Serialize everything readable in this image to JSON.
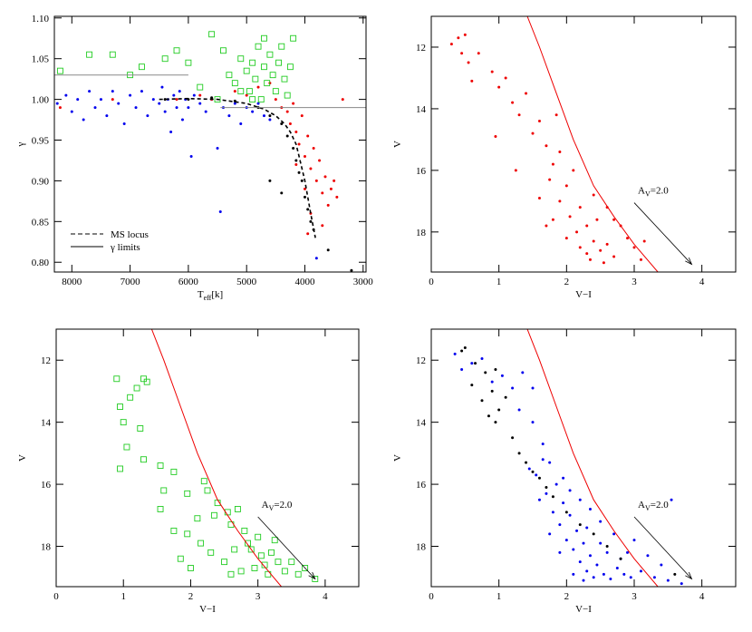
{
  "chart_data": [
    {
      "type": "scatter",
      "xlabel": [
        "T",
        "eff",
        "[k]"
      ],
      "ylabel": "γ",
      "xlim": [
        8300,
        2950
      ],
      "ylim": [
        0.788,
        1.102
      ],
      "xticks": [
        8000,
        7000,
        6000,
        5000,
        4000,
        3000
      ],
      "yticks": [
        {
          "value": 0.8,
          "label": "0.80"
        },
        {
          "value": 0.85,
          "label": "0.85"
        },
        {
          "value": 0.9,
          "label": "0.90"
        },
        {
          "value": 0.95,
          "label": "0.95"
        },
        {
          "value": 1.0,
          "label": "1.00"
        },
        {
          "value": 1.05,
          "label": "1.05"
        },
        {
          "value": 1.1,
          "label": "1.10"
        }
      ],
      "legend": "lower left",
      "series": [
        {
          "style": "dot",
          "color": "#0000ee",
          "x": [
            8250,
            8100,
            8000,
            7900,
            7800,
            7700,
            7600,
            7500,
            7400,
            7300,
            7200,
            7100,
            7000,
            6900,
            6800,
            6700,
            6600,
            6500,
            6450,
            6400,
            6350,
            6300,
            6250,
            6200,
            6150,
            6100,
            6050,
            6000,
            5950,
            5900,
            5800,
            5700,
            5600,
            5500,
            5400,
            5300,
            5200,
            5100,
            5000,
            4900,
            4800,
            4700,
            4600,
            5450,
            3800
          ],
          "y": [
            0.995,
            1.005,
            0.985,
            1.0,
            0.975,
            1.01,
            0.99,
            1.0,
            0.98,
            1.01,
            0.995,
            0.97,
            1.005,
            0.99,
            1.01,
            0.98,
            1.0,
            0.995,
            1.015,
            0.985,
            1.0,
            0.96,
            1.005,
            0.99,
            1.01,
            0.975,
            1.0,
            0.99,
            0.93,
            1.005,
            0.995,
            0.985,
            1.0,
            0.94,
            0.99,
            0.98,
            0.995,
            0.97,
            0.99,
            0.985,
            0.995,
            0.98,
            0.975,
            0.862,
            0.805
          ]
        },
        {
          "style": "dot",
          "color": "#ee0000",
          "x": [
            7300,
            6200,
            5800,
            5600,
            5200,
            5000,
            4800,
            4600,
            4500,
            4400,
            4300,
            4250,
            4200,
            4150,
            4100,
            4050,
            4000,
            3950,
            3900,
            3850,
            3800,
            3750,
            3700,
            3650,
            3600,
            3550,
            3500,
            3900,
            4000,
            4150,
            3950,
            3700,
            3450,
            3350,
            8200
          ],
          "y": [
            1.0,
            1.0,
            1.005,
            1.0,
            1.01,
            1.005,
            1.015,
            1.02,
            1.0,
            0.99,
            0.985,
            0.97,
            0.995,
            0.96,
            0.945,
            0.98,
            0.93,
            0.955,
            0.915,
            0.94,
            0.9,
            0.925,
            0.885,
            0.905,
            0.87,
            0.89,
            0.9,
            0.86,
            0.89,
            0.92,
            0.835,
            0.845,
            0.88,
            1.0,
            0.99
          ]
        },
        {
          "style": "dot",
          "color": "#000000",
          "x": [
            6400,
            6000,
            5600,
            5200,
            4800,
            4600,
            4400,
            4300,
            4200,
            4150,
            4100,
            4050,
            4000,
            3950,
            3900,
            3850,
            4400,
            4600,
            3600,
            3200
          ],
          "y": [
            1.0,
            1.0,
            1.002,
            0.998,
            0.99,
            0.98,
            0.97,
            0.955,
            0.94,
            0.925,
            0.91,
            0.9,
            0.88,
            0.865,
            0.85,
            0.84,
            0.885,
            0.9,
            0.815,
            0.79
          ]
        },
        {
          "style": "square",
          "color": "#22cc22",
          "x": [
            8200,
            7700,
            7300,
            6800,
            6400,
            6000,
            5600,
            5400,
            5300,
            5200,
            5100,
            5000,
            4950,
            4900,
            4850,
            4800,
            4750,
            4700,
            4650,
            4600,
            4550,
            4500,
            4450,
            4400,
            4350,
            4300,
            4250,
            4200,
            5800,
            5500,
            6200,
            7000,
            4700,
            4900,
            5100
          ],
          "y": [
            1.035,
            1.055,
            1.055,
            1.04,
            1.05,
            1.045,
            1.08,
            1.06,
            1.03,
            1.02,
            1.05,
            1.035,
            1.01,
            1.045,
            1.025,
            1.065,
            1.0,
            1.04,
            1.02,
            1.055,
            1.03,
            1.01,
            1.045,
            1.065,
            1.025,
            1.005,
            1.04,
            1.075,
            1.015,
            1.0,
            1.06,
            1.03,
            1.075,
            1.0,
            1.01
          ]
        },
        {
          "style": "line",
          "dash": true,
          "color": "#000000",
          "name": "MS locus",
          "x": [
            6500,
            6000,
            5500,
            5000,
            4700,
            4500,
            4350,
            4250,
            4150,
            4100,
            4050,
            4000,
            3950,
            3900,
            3820
          ],
          "y": [
            1.0,
            1.001,
            1.0,
            0.995,
            0.988,
            0.98,
            0.97,
            0.96,
            0.945,
            0.93,
            0.915,
            0.9,
            0.88,
            0.86,
            0.83
          ]
        },
        {
          "style": "line",
          "dash": false,
          "color": "#888888",
          "name": "γ limits",
          "x": [
            8300,
            6000,
            5750,
            5450,
            2950
          ],
          "y": [
            1.03,
            1.03,
            null,
            0.99,
            0.99
          ]
        }
      ]
    },
    {
      "type": "scatter",
      "xlabel": [
        "V−I"
      ],
      "ylabel": "V",
      "xlim": [
        0,
        4.5
      ],
      "ylim": [
        19.3,
        11
      ],
      "xticks": [
        0,
        1,
        2,
        3,
        4
      ],
      "yticks": [
        12,
        14,
        16,
        18
      ],
      "arrow": {
        "x": [
          3.0,
          3.85
        ],
        "y": [
          17.05,
          19.05
        ],
        "label": [
          "A",
          "V",
          "=2.0"
        ]
      },
      "series": [
        {
          "style": "dot",
          "color": "#ee0000",
          "x": [
            0.3,
            0.4,
            0.5,
            0.45,
            0.55,
            0.6,
            0.7,
            0.9,
            1.0,
            1.1,
            1.2,
            1.3,
            1.4,
            1.5,
            1.6,
            1.7,
            1.8,
            1.9,
            1.75,
            2.0,
            2.1,
            1.9,
            2.2,
            2.05,
            2.3,
            2.15,
            2.4,
            2.5,
            2.3,
            2.6,
            2.7,
            2.2,
            2.45,
            2.6,
            2.8,
            2.9,
            3.0,
            3.1,
            3.15,
            2.0,
            1.8,
            1.6,
            1.7,
            2.35,
            2.55,
            1.25,
            0.95,
            1.85,
            2.4,
            2.7
          ],
          "y": [
            11.9,
            11.7,
            11.6,
            12.2,
            12.5,
            13.1,
            12.2,
            12.8,
            13.3,
            13.0,
            13.8,
            14.2,
            13.5,
            14.8,
            14.4,
            15.2,
            15.8,
            15.4,
            16.3,
            16.5,
            16.0,
            17.0,
            17.2,
            17.5,
            17.8,
            18.0,
            18.3,
            18.6,
            18.7,
            18.4,
            18.8,
            18.5,
            17.6,
            17.2,
            17.8,
            18.2,
            18.5,
            18.9,
            18.3,
            18.2,
            17.6,
            16.9,
            17.8,
            18.9,
            19.0,
            16.0,
            14.9,
            14.2,
            16.8,
            17.6
          ]
        },
        {
          "style": "line",
          "dash": false,
          "color": "#ee0000",
          "x": [
            1.42,
            1.6,
            1.85,
            2.1,
            2.4,
            2.7,
            3.0,
            3.35
          ],
          "y": [
            11,
            12,
            13.5,
            15,
            16.5,
            17.5,
            18.4,
            19.3
          ]
        }
      ]
    },
    {
      "type": "scatter",
      "xlabel": [
        "V−I"
      ],
      "ylabel": "V",
      "xlim": [
        0,
        4.5
      ],
      "ylim": [
        19.3,
        11
      ],
      "xticks": [
        0,
        1,
        2,
        3,
        4
      ],
      "yticks": [
        12,
        14,
        16,
        18
      ],
      "arrow": {
        "x": [
          3.0,
          3.85
        ],
        "y": [
          17.05,
          19.05
        ],
        "label": [
          "A",
          "V",
          "=2.0"
        ]
      },
      "series": [
        {
          "style": "square",
          "color": "#22cc22",
          "x": [
            0.9,
            1.3,
            1.35,
            1.2,
            1.1,
            0.95,
            1.0,
            1.25,
            1.05,
            1.3,
            0.95,
            1.55,
            1.75,
            1.6,
            1.55,
            1.95,
            2.1,
            2.2,
            2.25,
            2.4,
            1.75,
            1.95,
            2.15,
            2.3,
            2.5,
            2.6,
            2.7,
            2.8,
            2.85,
            2.9,
            3.0,
            3.05,
            3.1,
            3.2,
            3.3,
            3.4,
            3.5,
            3.6,
            3.7,
            3.85,
            2.6,
            2.75,
            2.95,
            3.15,
            2.0,
            2.35,
            2.55,
            1.85,
            3.25,
            2.65
          ],
          "y": [
            12.6,
            12.6,
            12.7,
            12.9,
            13.2,
            13.5,
            14.0,
            14.2,
            14.8,
            15.2,
            15.5,
            15.4,
            15.6,
            16.2,
            16.8,
            16.3,
            17.1,
            15.9,
            16.2,
            16.6,
            17.5,
            17.6,
            17.9,
            18.2,
            18.5,
            17.3,
            16.8,
            17.5,
            17.9,
            18.1,
            17.7,
            18.3,
            18.6,
            18.2,
            18.5,
            18.8,
            18.5,
            18.9,
            18.7,
            19.05,
            18.9,
            18.8,
            18.7,
            18.9,
            18.7,
            17.0,
            16.9,
            18.4,
            17.8,
            18.1
          ]
        },
        {
          "style": "line",
          "dash": false,
          "color": "#ee0000",
          "x": [
            1.42,
            1.6,
            1.85,
            2.1,
            2.4,
            2.7,
            3.0,
            3.35
          ],
          "y": [
            11,
            12,
            13.5,
            15,
            16.5,
            17.5,
            18.4,
            19.3
          ]
        }
      ]
    },
    {
      "type": "scatter",
      "xlabel": [
        "V−I"
      ],
      "ylabel": "V",
      "xlim": [
        0,
        4.5
      ],
      "ylim": [
        19.3,
        11
      ],
      "xticks": [
        0,
        1,
        2,
        3,
        4
      ],
      "yticks": [
        12,
        14,
        16,
        18
      ],
      "arrow": {
        "x": [
          3.0,
          3.85
        ],
        "y": [
          17.05,
          19.05
        ],
        "label": [
          "A",
          "V",
          "=2.0"
        ]
      },
      "series": [
        {
          "style": "dot",
          "color": "#0000ee",
          "x": [
            0.35,
            0.45,
            0.6,
            0.75,
            0.9,
            1.05,
            1.2,
            1.3,
            1.5,
            1.65,
            1.75,
            1.55,
            1.85,
            1.7,
            1.95,
            1.8,
            2.05,
            1.9,
            2.15,
            2.0,
            2.25,
            2.1,
            2.35,
            2.2,
            2.45,
            2.3,
            2.55,
            2.4,
            2.65,
            2.75,
            2.85,
            2.95,
            3.1,
            3.3,
            3.5,
            3.7,
            2.6,
            2.7,
            3.0,
            3.2,
            2.5,
            2.35,
            2.2,
            2.05,
            1.6,
            1.75,
            1.9,
            2.1,
            2.5,
            2.8,
            3.4,
            2.3,
            1.65,
            1.45,
            1.95,
            3.55,
            1.35,
            1.5,
            2.25,
            2.9
          ],
          "y": [
            11.8,
            12.3,
            12.1,
            11.95,
            12.7,
            12.5,
            12.9,
            13.6,
            14.0,
            14.7,
            15.3,
            15.7,
            16.0,
            16.3,
            16.6,
            16.9,
            17.0,
            17.3,
            17.5,
            17.8,
            17.9,
            18.1,
            18.3,
            18.5,
            18.6,
            18.8,
            18.9,
            19.0,
            19.05,
            18.7,
            18.9,
            19.0,
            18.8,
            19.0,
            19.1,
            19.2,
            18.2,
            17.6,
            17.8,
            18.3,
            17.2,
            16.8,
            16.5,
            16.2,
            16.5,
            17.6,
            18.2,
            18.9,
            17.9,
            18.4,
            18.6,
            17.4,
            15.2,
            15.5,
            15.8,
            16.5,
            12.4,
            12.9,
            19.1,
            18.2
          ]
        },
        {
          "style": "dot",
          "color": "#000000",
          "x": [
            0.5,
            0.45,
            0.65,
            0.8,
            0.6,
            0.95,
            0.9,
            0.75,
            1.0,
            0.85,
            1.1,
            0.95,
            1.2,
            1.3,
            1.4,
            1.5,
            1.6,
            1.7,
            1.8,
            2.0,
            2.2,
            2.4,
            2.6,
            2.8,
            3.6
          ],
          "y": [
            11.6,
            11.7,
            12.1,
            12.4,
            12.8,
            12.3,
            13.0,
            13.3,
            13.6,
            13.8,
            13.2,
            14.0,
            14.5,
            15.0,
            15.3,
            15.6,
            15.8,
            16.1,
            16.4,
            16.9,
            17.3,
            17.6,
            18.0,
            18.4,
            18.9
          ]
        },
        {
          "style": "line",
          "dash": false,
          "color": "#ee0000",
          "x": [
            1.42,
            1.6,
            1.85,
            2.1,
            2.4,
            2.7,
            3.0,
            3.35
          ],
          "y": [
            11,
            12,
            13.5,
            15,
            16.5,
            17.5,
            18.4,
            19.3
          ]
        }
      ]
    }
  ]
}
